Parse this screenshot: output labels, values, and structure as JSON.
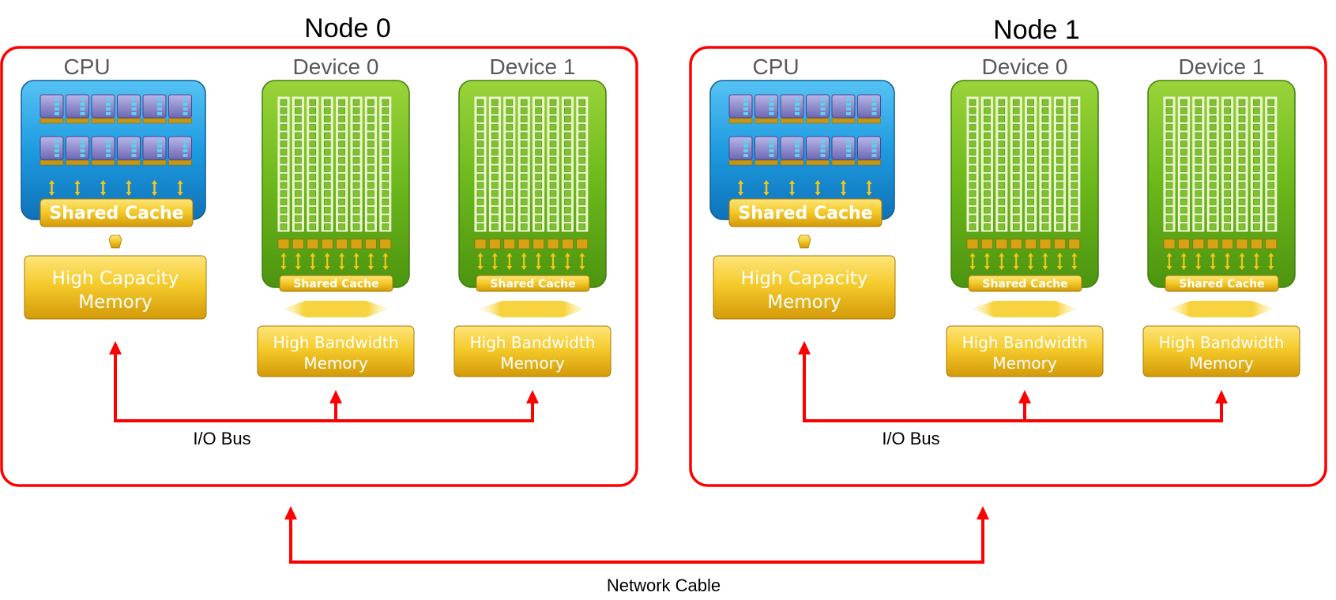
{
  "nodes": [
    {
      "title": "Node 0",
      "cpu": {
        "title": "CPU",
        "cache_label": "Shared Cache",
        "memory_label": [
          "High Capacity",
          "Memory"
        ]
      },
      "devices": [
        {
          "title": "Device 0",
          "cache_label": "Shared Cache",
          "memory_label": [
            "High Bandwidth",
            "Memory"
          ]
        },
        {
          "title": "Device 1",
          "cache_label": "Shared Cache",
          "memory_label": [
            "High Bandwidth",
            "Memory"
          ]
        }
      ],
      "bus_label": "I/O Bus"
    },
    {
      "title": "Node 1",
      "cpu": {
        "title": "CPU",
        "cache_label": "Shared Cache",
        "memory_label": [
          "High Capacity",
          "Memory"
        ]
      },
      "devices": [
        {
          "title": "Device 0",
          "cache_label": "Shared Cache",
          "memory_label": [
            "High Bandwidth",
            "Memory"
          ]
        },
        {
          "title": "Device 1",
          "cache_label": "Shared Cache",
          "memory_label": [
            "High Bandwidth",
            "Memory"
          ]
        }
      ],
      "bus_label": "I/O Bus"
    }
  ],
  "network_label": "Network Cable",
  "colors": {
    "connector_red": "#ff0000",
    "cpu_blue": "#1e9be0",
    "device_green": "#6cb81b",
    "memory_gold": "#f2c21f",
    "core_purple": "#8a86c9"
  }
}
